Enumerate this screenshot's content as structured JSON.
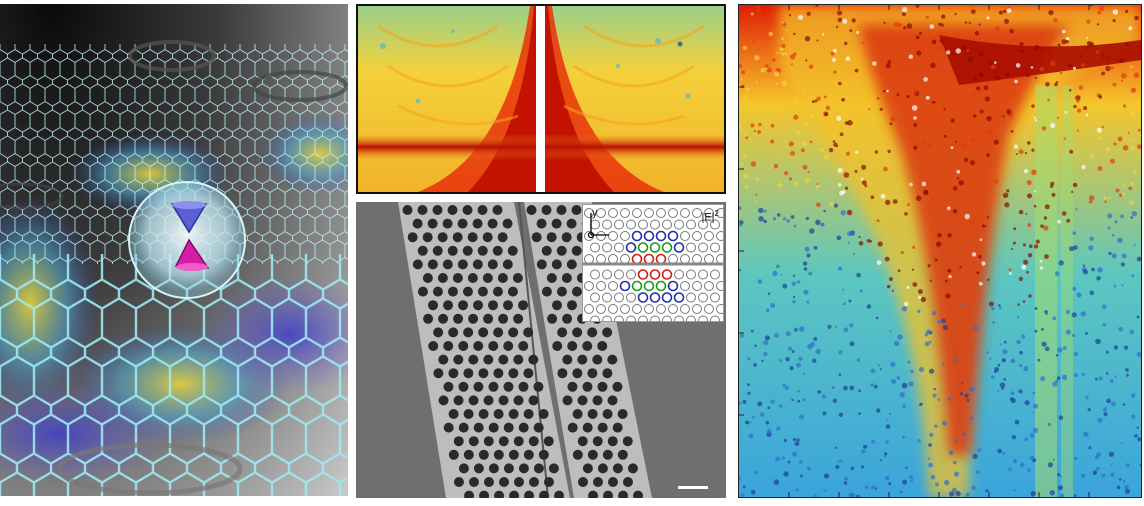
{
  "sem_inset": {
    "axis_label": "y",
    "field_label": "|E|",
    "field_exponent": "2"
  },
  "colors": {
    "hot": "#d81e05",
    "warm": "#f7c22c",
    "cool": "#39b5d6",
    "deep": "#1f5fb8",
    "sem_gray": "#6f6f6f",
    "graphene_cyan": "#8fe3ee"
  },
  "icons": [
    "dirac-cone-icon"
  ]
}
